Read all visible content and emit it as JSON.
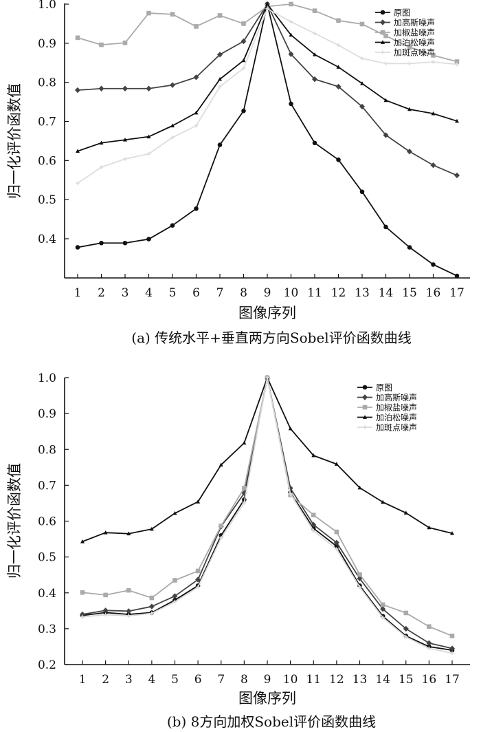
{
  "chart_data": [
    {
      "type": "line",
      "caption": "(a) 传统水平+垂直两方向Sobel评价函数曲线",
      "xlabel": "图像序列",
      "ylabel": "归一化评价函数值",
      "x": [
        1,
        2,
        3,
        4,
        5,
        6,
        7,
        8,
        9,
        10,
        11,
        12,
        13,
        14,
        15,
        16,
        17
      ],
      "yticks": [
        "0.4",
        "0.5",
        "0.6",
        "0.7",
        "0.8",
        "0.9",
        "1.0"
      ],
      "ylim": [
        0.3,
        1.0
      ],
      "legend_position": "top-right",
      "series": [
        {
          "name": "原图",
          "color": "#111111",
          "marker": "circle",
          "values": [
            0.378,
            0.389,
            0.389,
            0.399,
            0.434,
            0.477,
            0.64,
            0.727,
            1.0,
            0.745,
            0.645,
            0.602,
            0.52,
            0.43,
            0.378,
            0.334,
            0.305
          ]
        },
        {
          "name": "加高斯噪声",
          "color": "#444444",
          "marker": "diamond",
          "values": [
            0.78,
            0.784,
            0.784,
            0.784,
            0.793,
            0.813,
            0.871,
            0.905,
            1.0,
            0.872,
            0.808,
            0.789,
            0.738,
            0.665,
            0.623,
            0.588,
            0.562
          ]
        },
        {
          "name": "加椒盐噪声",
          "color": "#aaaaaa",
          "marker": "square",
          "values": [
            0.914,
            0.896,
            0.901,
            0.977,
            0.974,
            0.943,
            0.971,
            0.95,
            0.994,
            1.0,
            0.983,
            0.958,
            0.949,
            0.919,
            0.89,
            0.869,
            0.853
          ]
        },
        {
          "name": "加泊松噪声",
          "color": "#111111",
          "marker": "triangle",
          "values": [
            0.624,
            0.645,
            0.653,
            0.661,
            0.689,
            0.722,
            0.808,
            0.856,
            1.0,
            0.921,
            0.871,
            0.839,
            0.797,
            0.754,
            0.731,
            0.72,
            0.701
          ]
        },
        {
          "name": "加斑点噪声",
          "color": "#dddddd",
          "marker": "star",
          "values": [
            0.542,
            0.583,
            0.604,
            0.617,
            0.659,
            0.689,
            0.789,
            0.836,
            0.988,
            0.955,
            0.925,
            0.895,
            0.861,
            0.848,
            0.848,
            0.852,
            0.846
          ]
        }
      ]
    },
    {
      "type": "line",
      "caption": "(b) 8方向加权Sobel评价函数曲线",
      "xlabel": "图像序列",
      "ylabel": "归一化评价函数值",
      "x": [
        1,
        2,
        3,
        4,
        5,
        6,
        7,
        8,
        9,
        10,
        11,
        12,
        13,
        14,
        15,
        16,
        17
      ],
      "yticks": [
        "0.2",
        "0.3",
        "0.4",
        "0.5",
        "0.6",
        "0.7",
        "0.8",
        "0.9",
        "1.0"
      ],
      "ylim": [
        0.2,
        1.0
      ],
      "legend_position": "top-right",
      "series": [
        {
          "name": "原图",
          "color": "#111111",
          "marker": "circle",
          "values": [
            0.337,
            0.345,
            0.34,
            0.345,
            0.38,
            0.42,
            0.56,
            0.66,
            1.0,
            0.68,
            0.58,
            0.53,
            0.42,
            0.335,
            0.28,
            0.25,
            0.24
          ]
        },
        {
          "name": "加高斯噪声",
          "color": "#444444",
          "marker": "diamond",
          "values": [
            0.34,
            0.351,
            0.349,
            0.362,
            0.391,
            0.437,
            0.585,
            0.678,
            1.0,
            0.692,
            0.59,
            0.54,
            0.44,
            0.355,
            0.3,
            0.26,
            0.245
          ]
        },
        {
          "name": "加椒盐噪声",
          "color": "#aaaaaa",
          "marker": "square",
          "values": [
            0.401,
            0.394,
            0.407,
            0.386,
            0.435,
            0.461,
            0.587,
            0.692,
            1.0,
            0.673,
            0.617,
            0.57,
            0.451,
            0.367,
            0.344,
            0.306,
            0.28
          ]
        },
        {
          "name": "加泊松噪声",
          "color": "#111111",
          "marker": "triangle",
          "values": [
            0.543,
            0.568,
            0.565,
            0.578,
            0.622,
            0.654,
            0.757,
            0.818,
            1.0,
            0.858,
            0.783,
            0.759,
            0.693,
            0.653,
            0.623,
            0.582,
            0.566
          ]
        },
        {
          "name": "加斑点噪声",
          "color": "#d9d9d9",
          "marker": "star",
          "values": [
            0.333,
            0.339,
            0.336,
            0.343,
            0.375,
            0.416,
            0.553,
            0.651,
            1.0,
            0.676,
            0.573,
            0.522,
            0.416,
            0.331,
            0.277,
            0.245,
            0.232
          ]
        }
      ]
    }
  ]
}
